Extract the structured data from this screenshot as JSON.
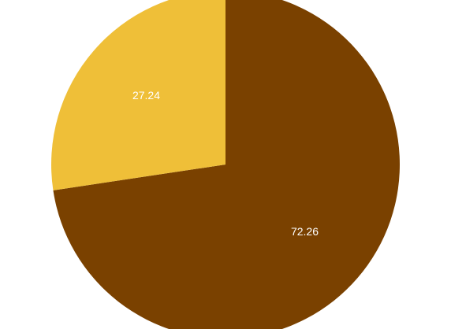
{
  "chart_data": {
    "type": "pie",
    "slices": [
      {
        "value": 72.26,
        "label": "72.26",
        "color": "#7a4100"
      },
      {
        "value": 27.24,
        "label": "27.24",
        "color": "#efbf38"
      }
    ],
    "start_angle_deg": 0,
    "direction": "clockwise",
    "legend": "none",
    "title": ""
  }
}
